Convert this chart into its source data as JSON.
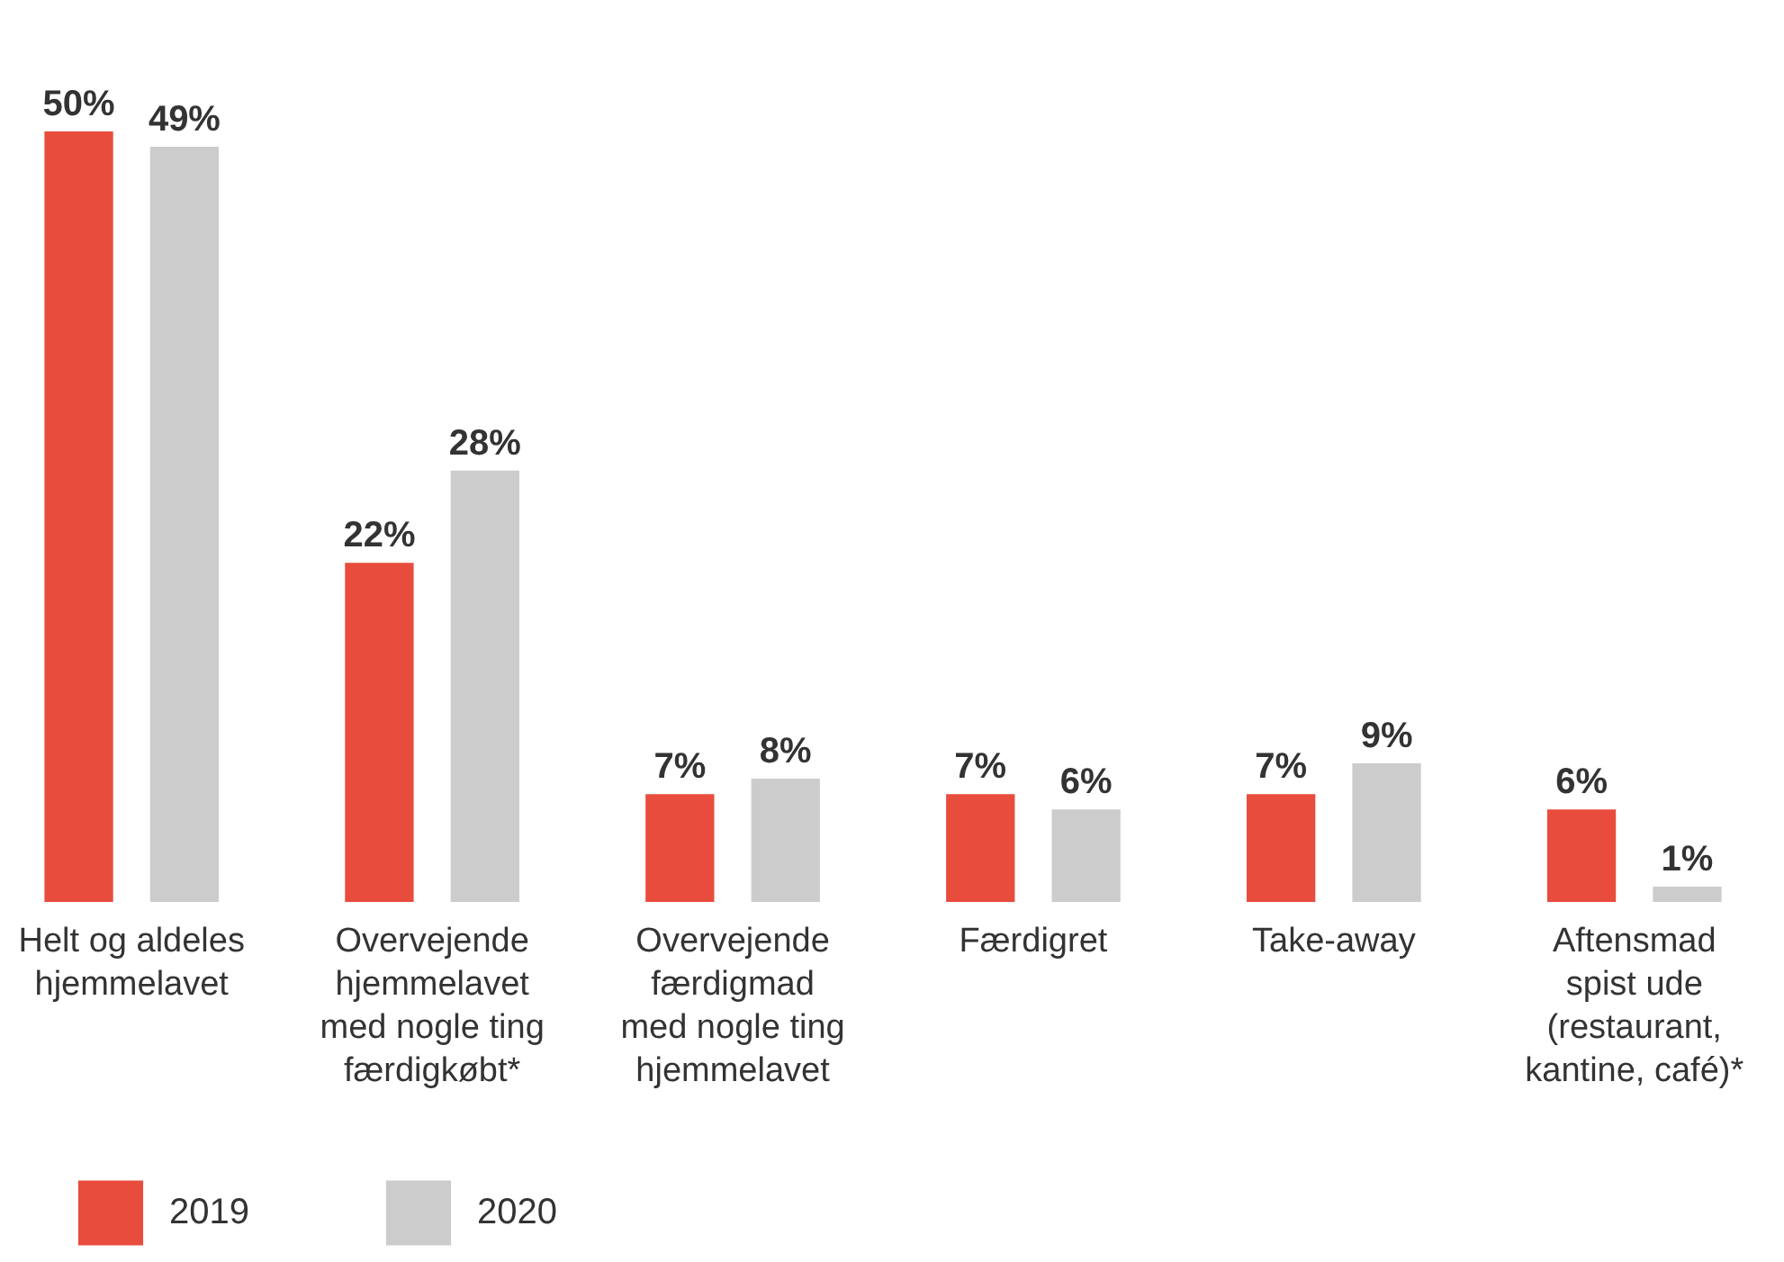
{
  "chart_data": {
    "type": "bar",
    "categories": [
      "Helt og aldeles\nhjemmelavet",
      "Overvejende\nhjemmelavet\nmed nogle ting\nfærdigkøbt*",
      "Overvejende\nfærdigmad\nmed nogle ting\nhjemmelavet",
      "Færdigret",
      "Take-away",
      "Aftensmad\nspist ude\n(restaurant,\nkantine, café)*"
    ],
    "series": [
      {
        "name": "2019",
        "color": "#e84c3d",
        "values": [
          50,
          22,
          7,
          7,
          7,
          6
        ],
        "value_labels": [
          "50%",
          "22%",
          "7%",
          "7%",
          "7%",
          "6%"
        ]
      },
      {
        "name": "2020",
        "color": "#cccccc",
        "values": [
          49,
          28,
          8,
          6,
          9,
          1
        ],
        "value_labels": [
          "49%",
          "28%",
          "8%",
          "6%",
          "9%",
          "1%"
        ]
      }
    ],
    "legend": "bottom left",
    "grid": false
  }
}
